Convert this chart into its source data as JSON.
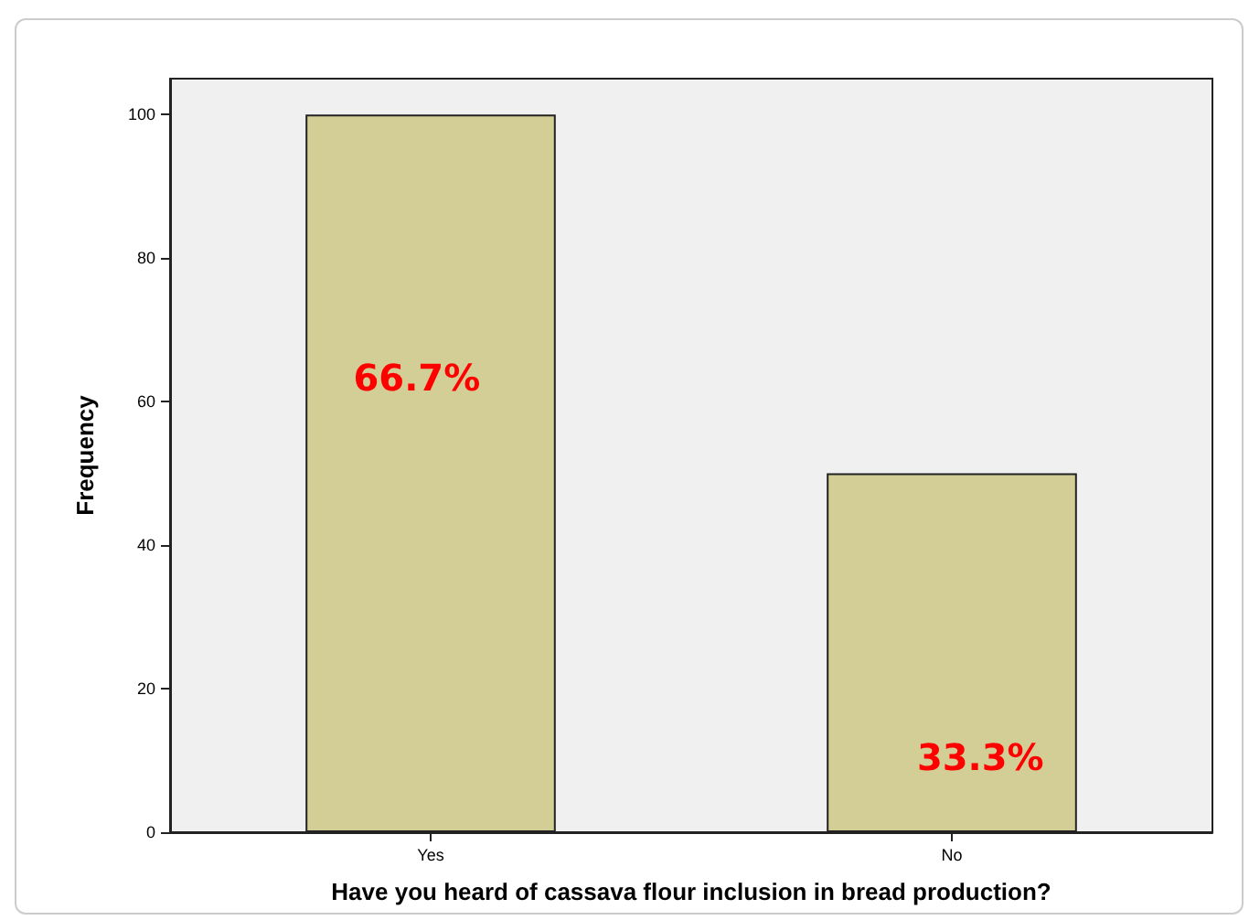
{
  "chart_data": {
    "type": "bar",
    "xlabel": "Have you heard of cassava flour inclusion in bread production?",
    "ylabel": "Frequency",
    "categories": [
      "Yes",
      "No"
    ],
    "values": [
      100,
      50
    ],
    "color": "#d3ce96",
    "annotations": [
      "66.7%",
      "33.3%"
    ],
    "ylim": [
      0,
      105
    ],
    "yticks": [
      0,
      20,
      40,
      60,
      80,
      100
    ],
    "grid": false
  }
}
